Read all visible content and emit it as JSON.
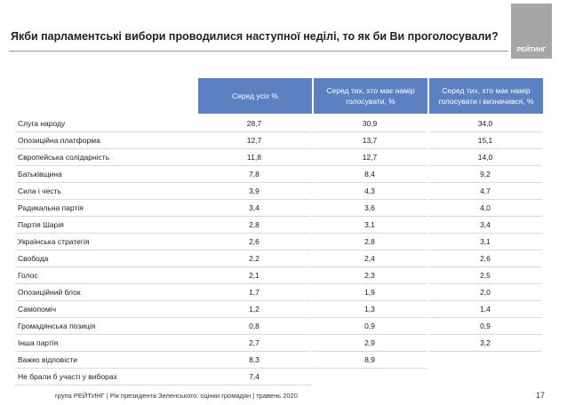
{
  "logo": "РЕЙТИНГ",
  "title": "Якби парламентські вибори проводилися наступної неділі, то як би Ви проголосували?",
  "table": {
    "header": [
      "Серед усіх %",
      "Серед тих, хто має намір голосувати, %",
      "Серед тих, хто має намір голосувати і визначився, %"
    ],
    "rows": [
      [
        "Слуга народу",
        "28,7",
        "30,9",
        "34,0"
      ],
      [
        "Опозиційна платформа",
        "12,7",
        "13,7",
        "15,1"
      ],
      [
        "Європейська солідарність",
        "11,8",
        "12,7",
        "14,0"
      ],
      [
        "Батьківщина",
        "7,8",
        "8,4",
        "9,2"
      ],
      [
        "Сила і честь",
        "3,9",
        "4,3",
        "4,7"
      ],
      [
        "Радикальна партія",
        "3,4",
        "3,6",
        "4,0"
      ],
      [
        "Партія Шарія",
        "2,8",
        "3,1",
        "3,4"
      ],
      [
        "Українська стратегія",
        "2,6",
        "2,8",
        "3,1"
      ],
      [
        "Свобода",
        "2,2",
        "2,4",
        "2,6"
      ],
      [
        "Голос",
        "2,1",
        "2,3",
        "2,5"
      ],
      [
        "Опозиційний блок",
        "1,7",
        "1,9",
        "2,0"
      ],
      [
        "Самопоміч",
        "1,2",
        "1,3",
        "1,4"
      ],
      [
        "Громадянська позиція",
        "0,8",
        "0,9",
        "0,9"
      ],
      [
        "Інша партія",
        "2,7",
        "2,9",
        "3,2"
      ],
      [
        "Важко відповісти",
        "8,3",
        "8,9",
        null
      ],
      [
        "Не брали б участі у виборах",
        "7,4",
        null,
        null
      ]
    ]
  },
  "footer": "група РЕЙТИНГ | Рік президента Зеленського: оцінки громадян | травень 2020",
  "page_number": "17"
}
